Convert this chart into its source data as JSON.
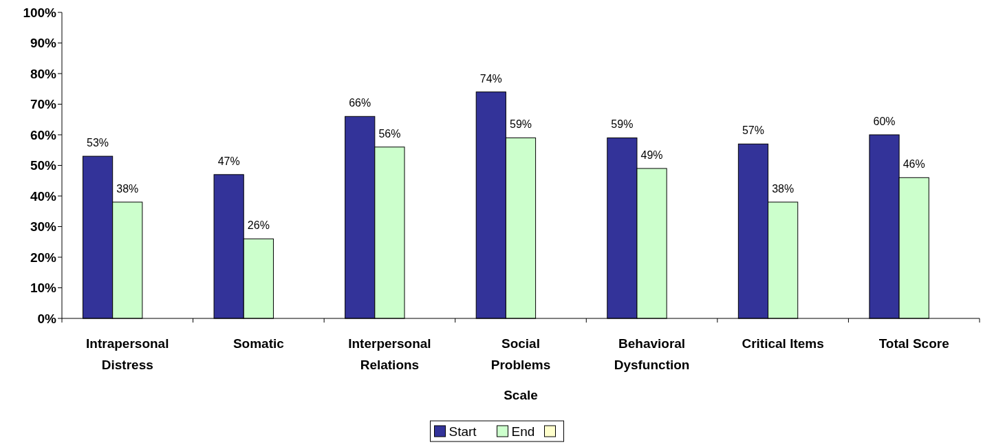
{
  "chart_data": {
    "type": "bar",
    "xlabel": "Scale",
    "categories": [
      [
        "Intrapersonal",
        "Distress"
      ],
      [
        "Somatic"
      ],
      [
        "Interpersonal",
        "Relations"
      ],
      [
        "Social",
        "Problems"
      ],
      [
        "Behavioral",
        "Dysfunction"
      ],
      [
        "Critical Items"
      ],
      [
        "Total Score"
      ]
    ],
    "series": [
      {
        "name": "Start",
        "color": "#333399",
        "values": [
          53,
          47,
          66,
          74,
          59,
          57,
          60
        ],
        "value_labels": [
          "53%",
          "47%",
          "66%",
          "74%",
          "59%",
          "57%",
          "60%"
        ]
      },
      {
        "name": "End",
        "color": "#ccffcc",
        "values": [
          38,
          26,
          56,
          59,
          49,
          38,
          46
        ],
        "value_labels": [
          "38%",
          "26%",
          "56%",
          "59%",
          "49%",
          "38%",
          "46%"
        ]
      },
      {
        "color": "#ffffcc",
        "values": [
          null,
          null,
          null,
          null,
          null,
          null,
          null
        ]
      }
    ],
    "ylim": [
      0,
      100
    ],
    "yticks": [
      {
        "value": 0,
        "label": "0%"
      },
      {
        "value": 10,
        "label": "10%"
      },
      {
        "value": 20,
        "label": "20%"
      },
      {
        "value": 30,
        "label": "30%"
      },
      {
        "value": 40,
        "label": "40%"
      },
      {
        "value": 50,
        "label": "50%"
      },
      {
        "value": 60,
        "label": "60%"
      },
      {
        "value": 70,
        "label": "70%"
      },
      {
        "value": 80,
        "label": "80%"
      },
      {
        "value": 90,
        "label": "90%"
      },
      {
        "value": 100,
        "label": "100%"
      }
    ],
    "grid": false,
    "legend": "bottom"
  }
}
